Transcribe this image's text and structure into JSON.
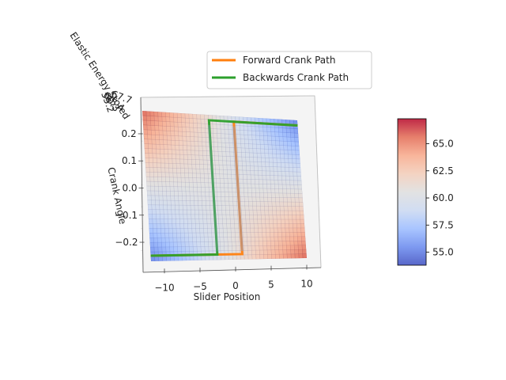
{
  "chart_data": {
    "type": "surface3d",
    "xlabel": "Slider Position",
    "ylabel": "Crank Angle",
    "zlabel": "Elastic Energy Stored",
    "x_ticks": [
      -10,
      -5,
      0,
      5,
      10
    ],
    "x_tick_labels": [
      "−10",
      "−5",
      "0",
      "5",
      "10"
    ],
    "y_ticks": [
      -0.2,
      -0.1,
      0.0,
      0.1,
      0.2
    ],
    "y_tick_labels": [
      "−0.2",
      "−0.1",
      "0.0",
      "0.1",
      "0.2"
    ],
    "xlim": [
      -13,
      12
    ],
    "ylim": [
      -0.27,
      0.27
    ],
    "colorbar": {
      "ticks": [
        55.0,
        57.5,
        60.0,
        62.5,
        65.0
      ],
      "tick_labels": [
        "55.0",
        "57.5",
        "60.0",
        "62.5",
        "65.0"
      ],
      "range": [
        53.8,
        67.3
      ],
      "cmap": "coolwarm",
      "colors": [
        "#3b4cc0",
        "#6788ee",
        "#9abbff",
        "#c9d7f0",
        "#dddddd",
        "#f2cbb7",
        "#f7a889",
        "#e26952",
        "#b40426"
      ]
    },
    "legend": {
      "placement": "upper-center",
      "entries": [
        {
          "label": "Forward Crank Path",
          "color": "#ff7f0e"
        },
        {
          "label": "Backwards Crank Path",
          "color": "#2ca02c"
        }
      ]
    },
    "series": [
      {
        "name": "Forward Crank Path",
        "color": "#ff7f0e",
        "x": [
          -13,
          1.7,
          1.7,
          12
        ],
        "y": [
          -0.25,
          -0.25,
          0.25,
          0.25
        ]
      },
      {
        "name": "Backwards Crank Path",
        "color": "#2ca02c",
        "x": [
          -13,
          -2.3,
          -2.3,
          12
        ],
        "y": [
          -0.25,
          -0.25,
          0.25,
          0.25
        ]
      }
    ]
  }
}
